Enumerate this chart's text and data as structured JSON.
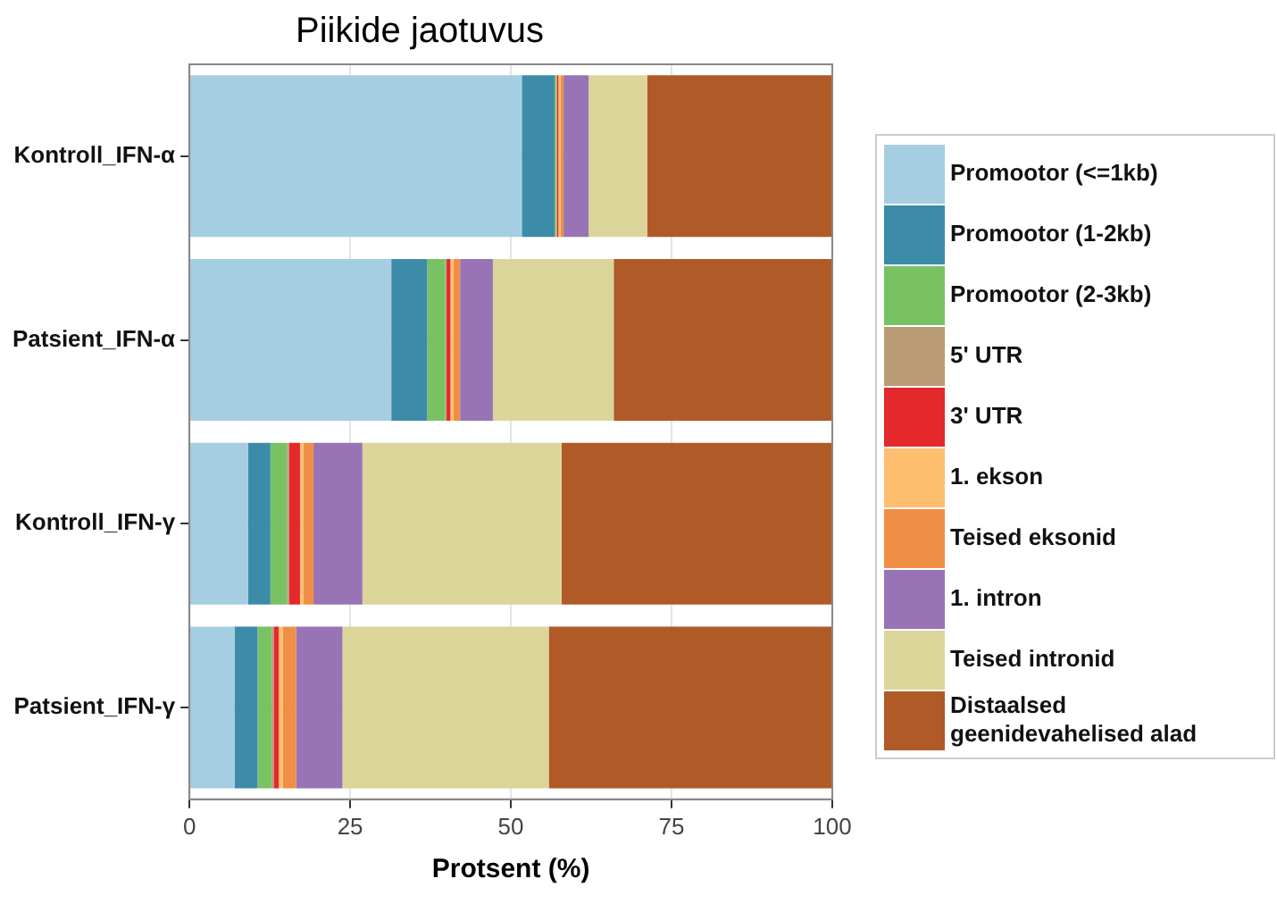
{
  "chart_data": {
    "type": "bar",
    "orientation": "horizontal",
    "stacked": true,
    "title": "Piikide jaotuvus",
    "xlabel": "Protsent (%)",
    "categories": [
      "Kontroll_IFN-α",
      "Patsient_IFN-α",
      "Kontroll_IFN-γ",
      "Patsient_IFN-γ"
    ],
    "xlim": [
      0,
      100
    ],
    "xticks": [
      0,
      25,
      50,
      75,
      100
    ],
    "grid": true,
    "legend": "right",
    "series": [
      {
        "name": "Promootor (<=1kb)",
        "color": "#a6cee3",
        "values": [
          51.7,
          31.4,
          9.1,
          7.0
        ]
      },
      {
        "name": "Promootor (1-2kb)",
        "color": "#3c8ca9",
        "values": [
          5.1,
          5.6,
          3.5,
          3.6
        ]
      },
      {
        "name": "Promootor (2-3kb)",
        "color": "#78c264",
        "values": [
          0.2,
          2.8,
          2.6,
          2.2
        ]
      },
      {
        "name": "5' UTR",
        "color": "#b89b74",
        "values": [
          0.2,
          0.2,
          0.3,
          0.3
        ]
      },
      {
        "name": "3' UTR",
        "color": "#e3292c",
        "values": [
          0.2,
          0.6,
          1.7,
          0.8
        ]
      },
      {
        "name": "1. ekson",
        "color": "#fdbf6f",
        "values": [
          0.3,
          0.5,
          0.5,
          0.6
        ]
      },
      {
        "name": "Teised eksonid",
        "color": "#ef8f45",
        "values": [
          0.5,
          1.0,
          1.6,
          2.1
        ]
      },
      {
        "name": "1. intron",
        "color": "#9873b5",
        "values": [
          3.9,
          5.1,
          7.6,
          7.2
        ]
      },
      {
        "name": "Teised intronid",
        "color": "#dcd59a",
        "values": [
          9.1,
          18.8,
          31.0,
          32.1
        ]
      },
      {
        "name": "Distaalsed geenidevahelised alad",
        "color": "#b05a28",
        "values": [
          28.8,
          34.0,
          42.1,
          44.1
        ]
      }
    ]
  }
}
